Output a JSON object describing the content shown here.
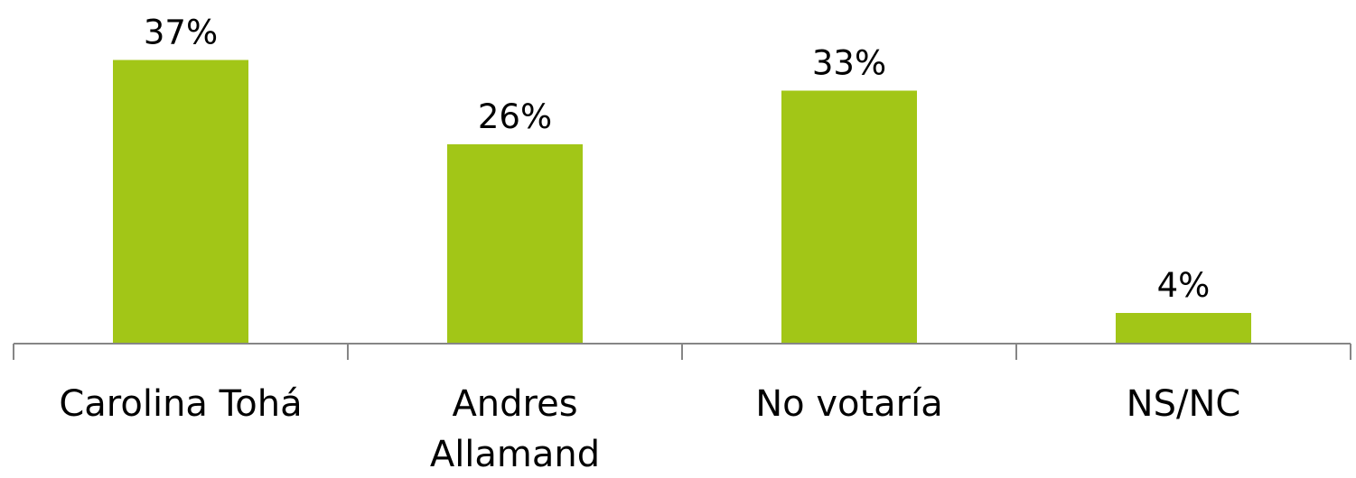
{
  "chart_data": {
    "type": "bar",
    "title": "",
    "xlabel": "",
    "ylabel": "",
    "categories": [
      "Carolina Tohá",
      "Andres Allamand",
      "No votaría",
      "NS/NC"
    ],
    "category_lines": [
      [
        "Carolina Tohá"
      ],
      [
        "Andres",
        "Allamand"
      ],
      [
        "No votaría"
      ],
      [
        "NS/NC"
      ]
    ],
    "values": [
      37,
      26,
      33,
      4
    ],
    "data_labels": [
      "37%",
      "26%",
      "33%",
      "4%"
    ],
    "ylim": [
      0,
      40
    ],
    "grid": false,
    "legend": "none",
    "bar_color": "#A2C617",
    "axis_color": "#868686"
  }
}
